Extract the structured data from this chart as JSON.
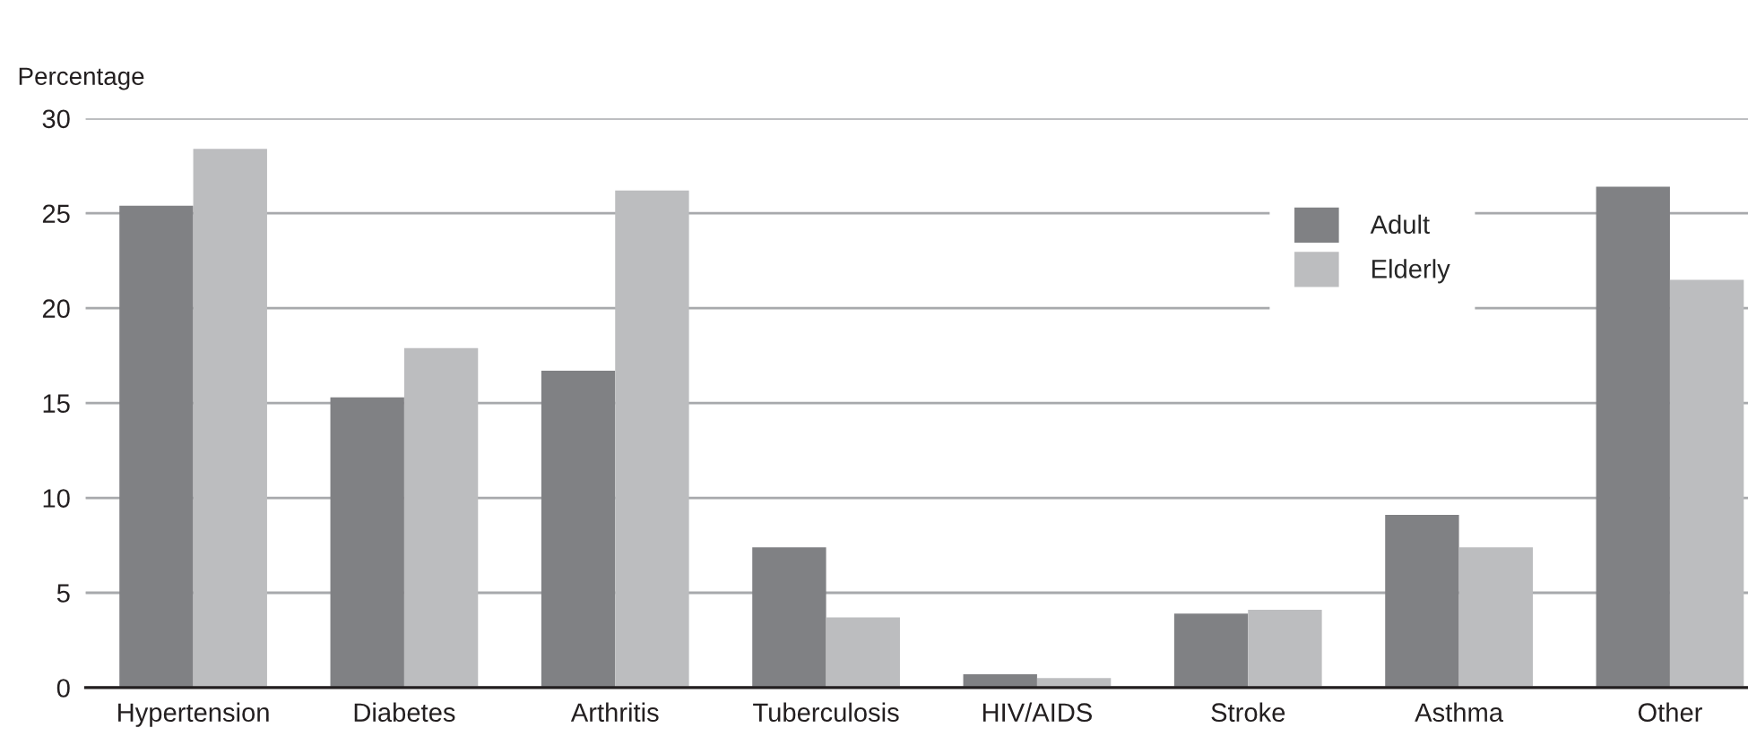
{
  "chart_data": {
    "type": "bar",
    "ylabel": "Percentage",
    "categories": [
      "Hypertension",
      "Diabetes",
      "Arthritis",
      "Tuberculosis",
      "HIV/AIDS",
      "Stroke",
      "Asthma",
      "Other"
    ],
    "series": [
      {
        "name": "Adult",
        "color": "#808184",
        "values": [
          25.4,
          15.3,
          16.7,
          7.4,
          0.7,
          3.9,
          9.1,
          26.4
        ]
      },
      {
        "name": "Elderly",
        "color": "#bcbdbf",
        "values": [
          28.4,
          17.9,
          26.2,
          3.7,
          0.5,
          4.1,
          7.4,
          21.5
        ]
      }
    ],
    "ylim": [
      0,
      30
    ],
    "yticks": [
      0,
      5,
      10,
      15,
      20,
      25,
      30
    ],
    "grid": "y",
    "legend": "top right"
  }
}
